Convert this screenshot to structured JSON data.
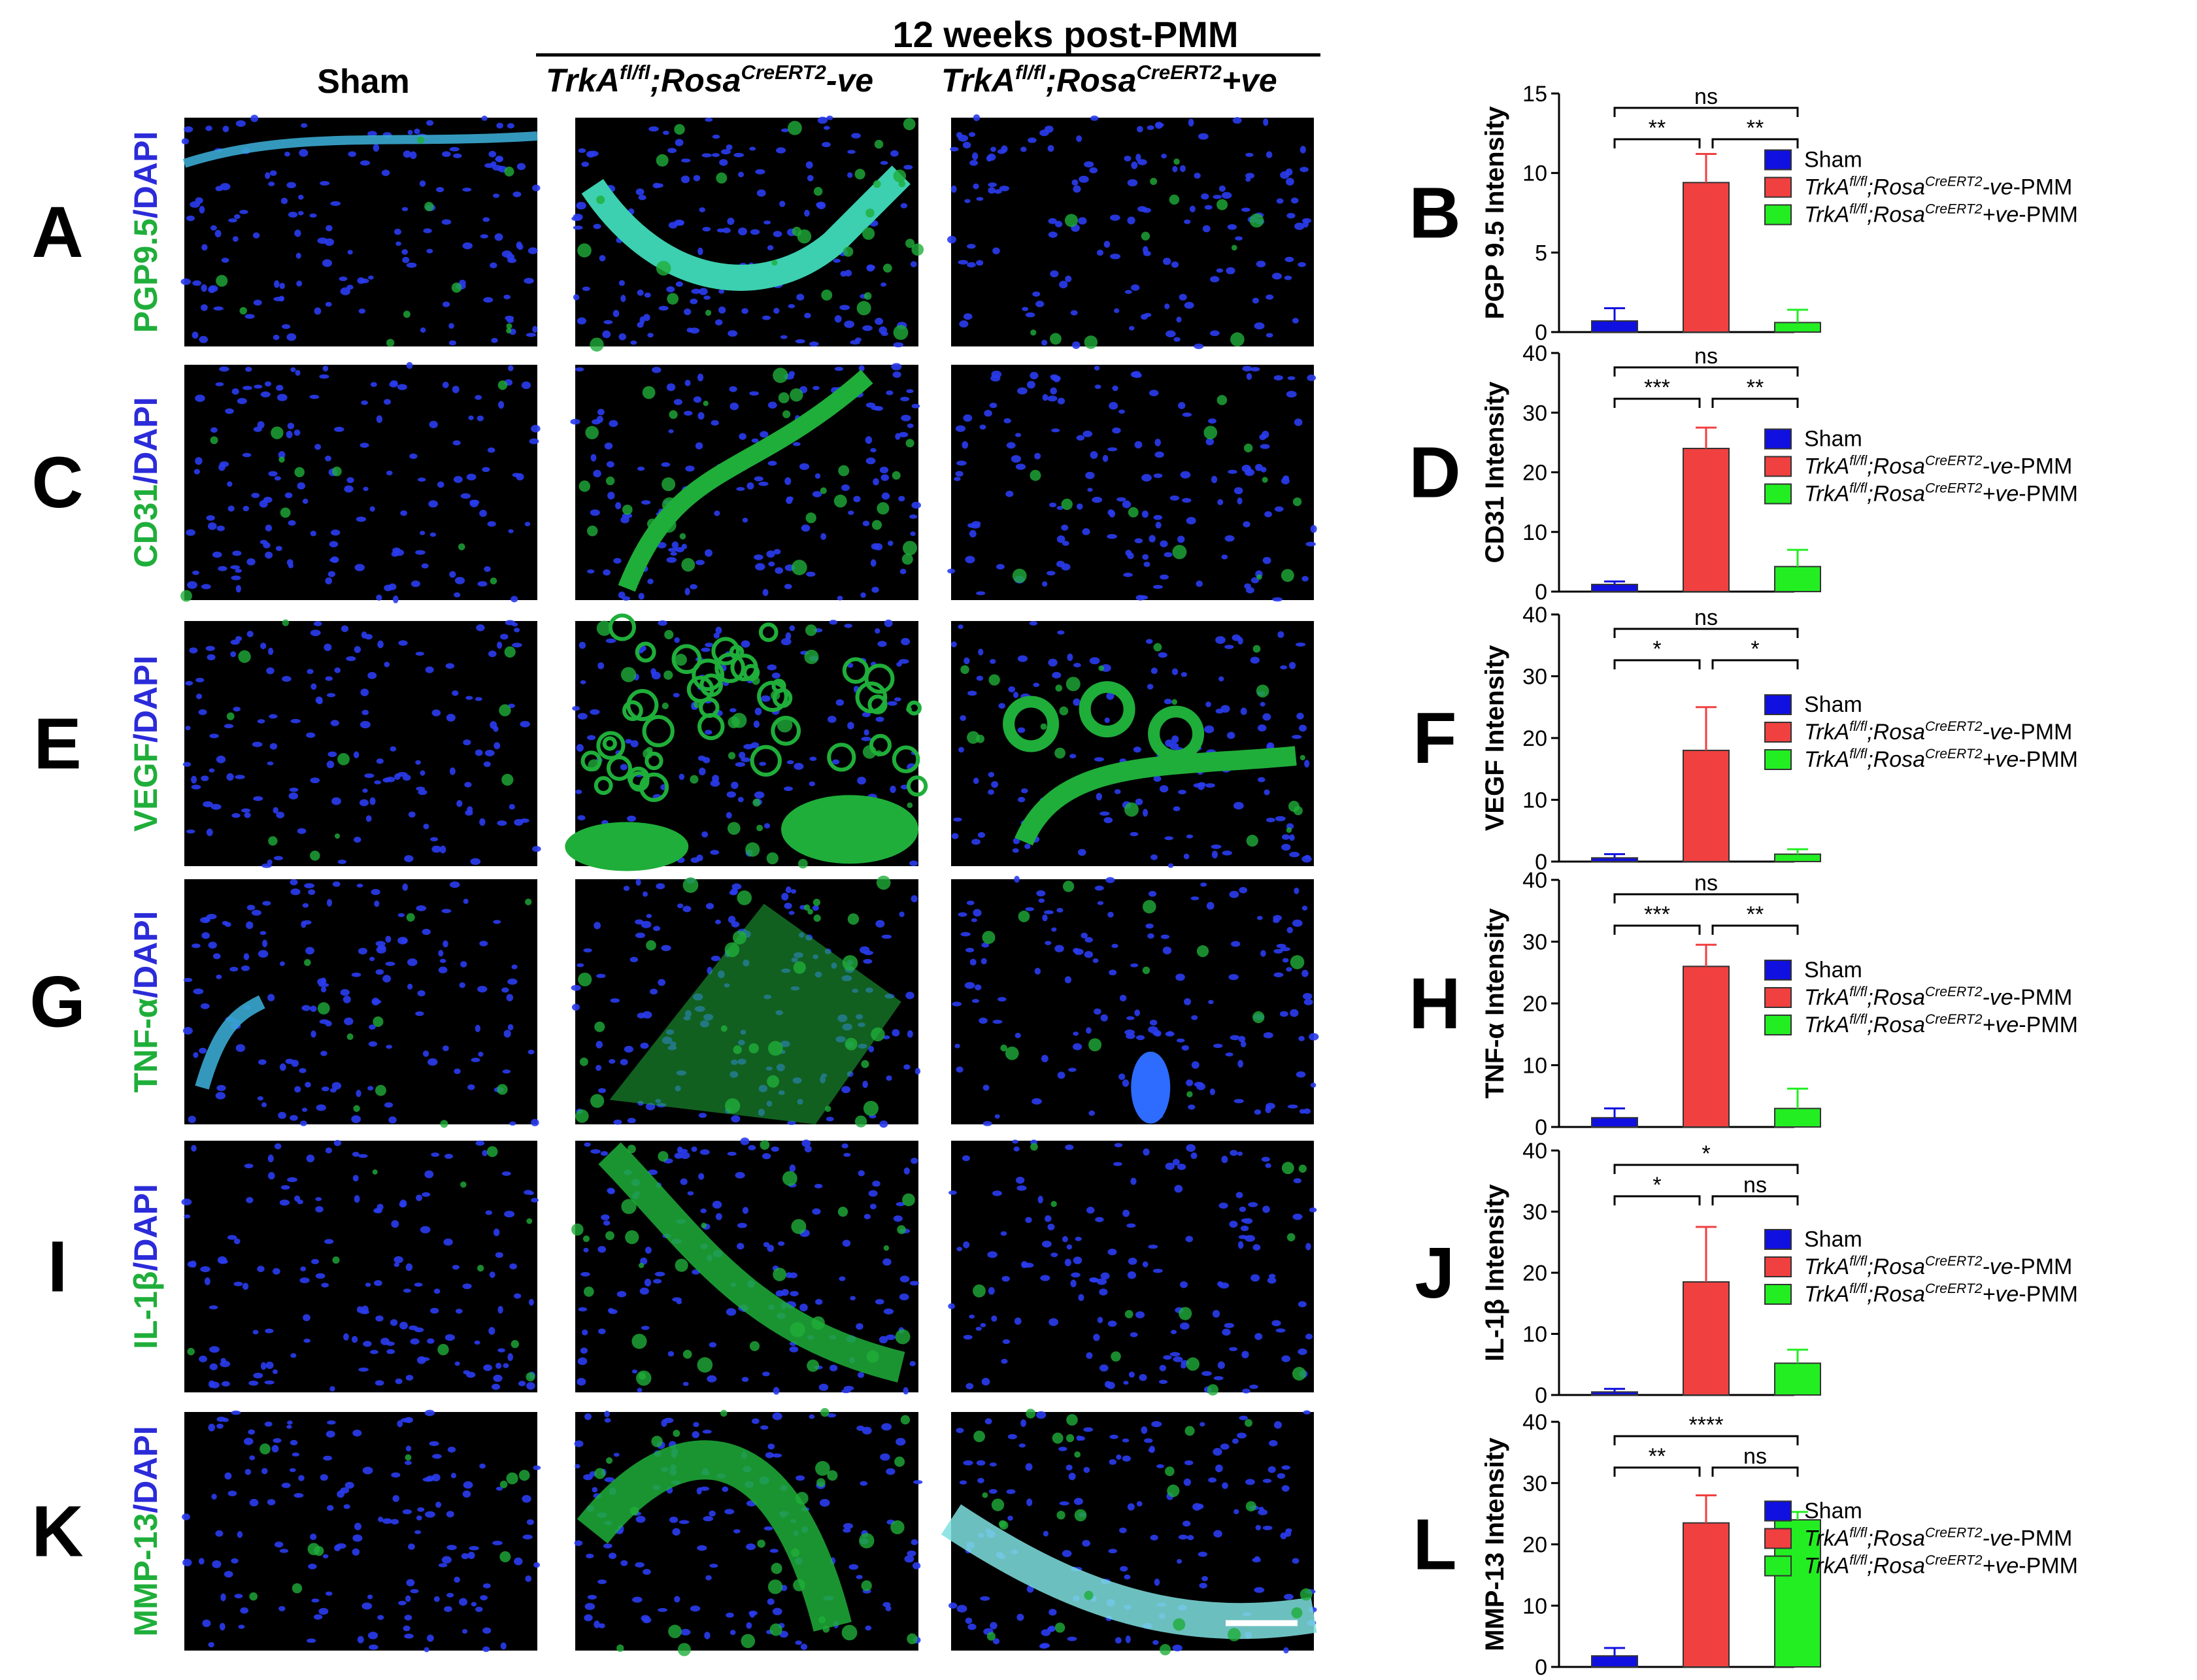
{
  "header": {
    "title": "12 weeks post-PMM",
    "col_sham": "Sham",
    "col_neg": [
      "TrkA",
      "fl/fl",
      ";Rosa",
      "CreERT2",
      "-ve"
    ],
    "col_pos": [
      "TrkA",
      "fl/fl",
      ";Rosa",
      "CreERT2",
      "+ve"
    ]
  },
  "colors": {
    "dapi": "#2b2bd9",
    "marker": "#1fae3a",
    "sham": "#1010e0",
    "neg": "#f04040",
    "pos": "#22ee22"
  },
  "rows": [
    {
      "letter": "A",
      "marker": "PGP9.5",
      "dapi": "/DAPI"
    },
    {
      "letter": "C",
      "marker": "CD31",
      "dapi": "/DAPI"
    },
    {
      "letter": "E",
      "marker": "VEGF",
      "dapi": "/DAPI"
    },
    {
      "letter": "G",
      "marker": "TNF-α",
      "dapi": "/DAPI"
    },
    {
      "letter": "I",
      "marker": "IL-1β",
      "dapi": "/DAPI"
    },
    {
      "letter": "K",
      "marker": "MMP-13",
      "dapi": "/DAPI"
    }
  ],
  "legend": {
    "sham": "Sham",
    "neg": [
      "TrkA",
      "fl/fl",
      ";Rosa",
      "CreERT2",
      "-ve",
      "-PMM"
    ],
    "pos": [
      "TrkA",
      "fl/fl",
      ";Rosa",
      "CreERT2",
      "+ve",
      "-PMM"
    ]
  },
  "chart_data": [
    {
      "letter": "B",
      "type": "bar",
      "ylabel": "PGP 9.5 Intensity",
      "ylim": [
        0,
        15
      ],
      "ticks": [
        0,
        5,
        10,
        15
      ],
      "categories": [
        "Sham",
        "TrkAfl/fl;RosaCreERT2-ve-PMM",
        "TrkAfl/fl;RosaCreERT2+ve-PMM"
      ],
      "values": [
        0.7,
        9.4,
        0.6
      ],
      "errors": [
        0.8,
        1.8,
        0.8
      ],
      "sig": [
        {
          "a": 0,
          "b": 1,
          "label": "**"
        },
        {
          "a": 1,
          "b": 2,
          "label": "**"
        },
        {
          "a": 0,
          "b": 2,
          "label": "ns"
        }
      ]
    },
    {
      "letter": "D",
      "type": "bar",
      "ylabel": "CD31 Intensity",
      "ylim": [
        0,
        40
      ],
      "ticks": [
        0,
        10,
        20,
        30,
        40
      ],
      "categories": [
        "Sham",
        "TrkAfl/fl;RosaCreERT2-ve-PMM",
        "TrkAfl/fl;RosaCreERT2+ve-PMM"
      ],
      "values": [
        1.2,
        24,
        4.2
      ],
      "errors": [
        0.5,
        3.5,
        2.8
      ],
      "sig": [
        {
          "a": 0,
          "b": 1,
          "label": "***"
        },
        {
          "a": 1,
          "b": 2,
          "label": "**"
        },
        {
          "a": 0,
          "b": 2,
          "label": "ns"
        }
      ]
    },
    {
      "letter": "F",
      "type": "bar",
      "ylabel": "VEGF Intensity",
      "ylim": [
        0,
        40
      ],
      "ticks": [
        0,
        10,
        20,
        30,
        40
      ],
      "categories": [
        "Sham",
        "TrkAfl/fl;RosaCreERT2-ve-PMM",
        "TrkAfl/fl;RosaCreERT2+ve-PMM"
      ],
      "values": [
        0.6,
        18,
        1.2
      ],
      "errors": [
        0.6,
        7,
        0.8
      ],
      "sig": [
        {
          "a": 0,
          "b": 1,
          "label": "*"
        },
        {
          "a": 1,
          "b": 2,
          "label": "*"
        },
        {
          "a": 0,
          "b": 2,
          "label": "ns"
        }
      ]
    },
    {
      "letter": "H",
      "type": "bar",
      "ylabel": "TNF-α Intensity",
      "ylim": [
        0,
        40
      ],
      "ticks": [
        0,
        10,
        20,
        30,
        40
      ],
      "categories": [
        "Sham",
        "TrkAfl/fl;RosaCreERT2-ve-PMM",
        "TrkAfl/fl;RosaCreERT2+ve-PMM"
      ],
      "values": [
        1.5,
        26,
        3
      ],
      "errors": [
        1.5,
        3.5,
        3.2
      ],
      "sig": [
        {
          "a": 0,
          "b": 1,
          "label": "***"
        },
        {
          "a": 1,
          "b": 2,
          "label": "**"
        },
        {
          "a": 0,
          "b": 2,
          "label": "ns"
        }
      ]
    },
    {
      "letter": "J",
      "type": "bar",
      "ylabel": "IL-1β Intensity",
      "ylim": [
        0,
        40
      ],
      "ticks": [
        0,
        10,
        20,
        30,
        40
      ],
      "categories": [
        "Sham",
        "TrkAfl/fl;RosaCreERT2-ve-PMM",
        "TrkAfl/fl;RosaCreERT2+ve-PMM"
      ],
      "values": [
        0.5,
        18.5,
        5.2
      ],
      "errors": [
        0.5,
        9,
        2.2
      ],
      "sig": [
        {
          "a": 0,
          "b": 1,
          "label": "*"
        },
        {
          "a": 1,
          "b": 2,
          "label": "ns"
        },
        {
          "a": 0,
          "b": 2,
          "label": "*"
        }
      ]
    },
    {
      "letter": "L",
      "type": "bar",
      "ylabel": "MMP-13 Intensity",
      "ylim": [
        0,
        40
      ],
      "ticks": [
        0,
        10,
        20,
        30,
        40
      ],
      "categories": [
        "Sham",
        "TrkAfl/fl;RosaCreERT2-ve-PMM",
        "TrkAfl/fl;RosaCreERT2+ve-PMM"
      ],
      "values": [
        1.8,
        23.5,
        24
      ],
      "errors": [
        1.3,
        4.5,
        1.3
      ],
      "sig": [
        {
          "a": 0,
          "b": 1,
          "label": "**"
        },
        {
          "a": 1,
          "b": 2,
          "label": "ns"
        },
        {
          "a": 0,
          "b": 2,
          "label": "****"
        }
      ]
    }
  ]
}
